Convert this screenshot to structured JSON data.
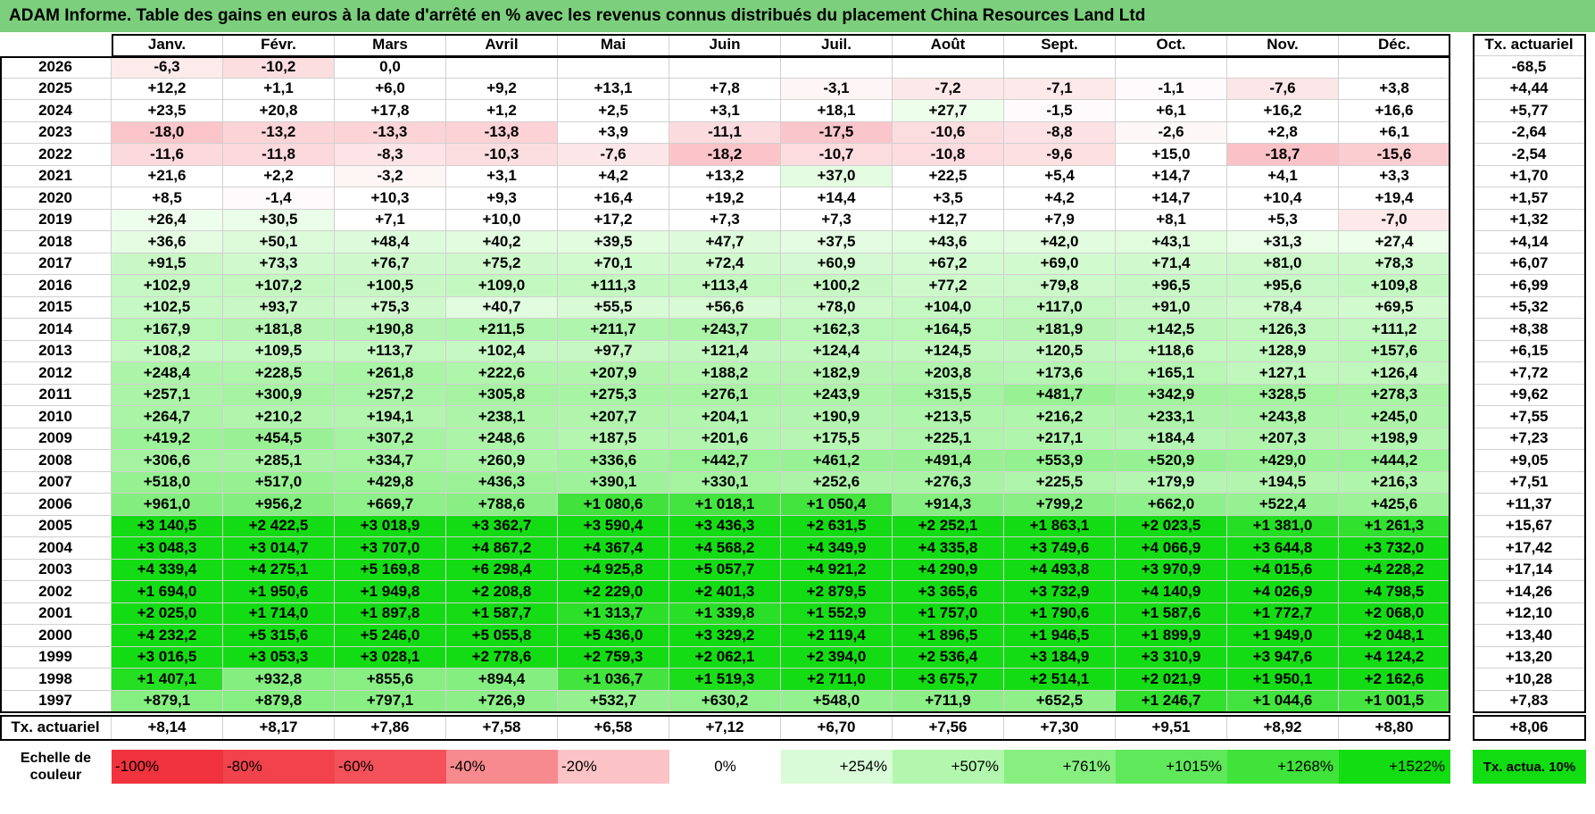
{
  "title": "ADAM Informe. Table des gains en euros à la date d'arrêté en % avec les revenus connus distribués du placement China Resources Land Ltd",
  "months": [
    "Janv.",
    "Févr.",
    "Mars",
    "Avril",
    "Mai",
    "Juin",
    "Juil.",
    "Août",
    "Sept.",
    "Oct.",
    "Nov.",
    "Déc."
  ],
  "rate_header": "Tx. actuariel",
  "rows": [
    {
      "year": "2026",
      "values": [
        "-6,3",
        "-10,2",
        "0,0",
        "",
        "",
        "",
        "",
        "",
        "",
        "",
        "",
        ""
      ],
      "rate": "-68,5"
    },
    {
      "year": "2025",
      "values": [
        "+12,2",
        "+1,1",
        "+6,0",
        "+9,2",
        "+13,1",
        "+7,8",
        "-3,1",
        "-7,2",
        "-7,1",
        "-1,1",
        "-7,6",
        "+3,8"
      ],
      "rate": "+4,44"
    },
    {
      "year": "2024",
      "values": [
        "+23,5",
        "+20,8",
        "+17,8",
        "+1,2",
        "+2,5",
        "+3,1",
        "+18,1",
        "+27,7",
        "-1,5",
        "+6,1",
        "+16,2",
        "+16,6"
      ],
      "rate": "+5,77"
    },
    {
      "year": "2023",
      "values": [
        "-18,0",
        "-13,2",
        "-13,3",
        "-13,8",
        "+3,9",
        "-11,1",
        "-17,5",
        "-10,6",
        "-8,8",
        "-2,6",
        "+2,8",
        "+6,1"
      ],
      "rate": "-2,64"
    },
    {
      "year": "2022",
      "values": [
        "-11,6",
        "-11,8",
        "-8,3",
        "-10,3",
        "-7,6",
        "-18,2",
        "-10,7",
        "-10,8",
        "-9,6",
        "+15,0",
        "-18,7",
        "-15,6"
      ],
      "rate": "-2,54"
    },
    {
      "year": "2021",
      "values": [
        "+21,6",
        "+2,2",
        "-3,2",
        "+3,1",
        "+4,2",
        "+13,2",
        "+37,0",
        "+22,5",
        "+5,4",
        "+14,7",
        "+4,1",
        "+3,3"
      ],
      "rate": "+1,70"
    },
    {
      "year": "2020",
      "values": [
        "+8,5",
        "-1,4",
        "+10,3",
        "+9,3",
        "+16,4",
        "+19,2",
        "+14,4",
        "+3,5",
        "+4,2",
        "+14,7",
        "+10,4",
        "+19,4"
      ],
      "rate": "+1,57"
    },
    {
      "year": "2019",
      "values": [
        "+26,4",
        "+30,5",
        "+7,1",
        "+10,0",
        "+17,2",
        "+7,3",
        "+7,3",
        "+12,7",
        "+7,9",
        "+8,1",
        "+5,3",
        "-7,0"
      ],
      "rate": "+1,32"
    },
    {
      "year": "2018",
      "values": [
        "+36,6",
        "+50,1",
        "+48,4",
        "+40,2",
        "+39,5",
        "+47,7",
        "+37,5",
        "+43,6",
        "+42,0",
        "+43,1",
        "+31,3",
        "+27,4"
      ],
      "rate": "+4,14"
    },
    {
      "year": "2017",
      "values": [
        "+91,5",
        "+73,3",
        "+76,7",
        "+75,2",
        "+70,1",
        "+72,4",
        "+60,9",
        "+67,2",
        "+69,0",
        "+71,4",
        "+81,0",
        "+78,3"
      ],
      "rate": "+6,07"
    },
    {
      "year": "2016",
      "values": [
        "+102,9",
        "+107,2",
        "+100,5",
        "+109,0",
        "+111,3",
        "+113,4",
        "+100,2",
        "+77,2",
        "+79,8",
        "+96,5",
        "+95,6",
        "+109,8"
      ],
      "rate": "+6,99"
    },
    {
      "year": "2015",
      "values": [
        "+102,5",
        "+93,7",
        "+75,3",
        "+40,7",
        "+55,5",
        "+56,6",
        "+78,0",
        "+104,0",
        "+117,0",
        "+91,0",
        "+78,4",
        "+69,5"
      ],
      "rate": "+5,32"
    },
    {
      "year": "2014",
      "values": [
        "+167,9",
        "+181,8",
        "+190,8",
        "+211,5",
        "+211,7",
        "+243,7",
        "+162,3",
        "+164,5",
        "+181,9",
        "+142,5",
        "+126,3",
        "+111,2"
      ],
      "rate": "+8,38"
    },
    {
      "year": "2013",
      "values": [
        "+108,2",
        "+109,5",
        "+113,7",
        "+102,4",
        "+97,7",
        "+121,4",
        "+124,4",
        "+124,5",
        "+120,5",
        "+118,6",
        "+128,9",
        "+157,6"
      ],
      "rate": "+6,15"
    },
    {
      "year": "2012",
      "values": [
        "+248,4",
        "+228,5",
        "+261,8",
        "+222,6",
        "+207,9",
        "+188,2",
        "+182,9",
        "+203,8",
        "+173,6",
        "+165,1",
        "+127,1",
        "+126,4"
      ],
      "rate": "+7,72"
    },
    {
      "year": "2011",
      "values": [
        "+257,1",
        "+300,9",
        "+257,2",
        "+305,8",
        "+275,3",
        "+276,1",
        "+243,9",
        "+315,5",
        "+481,7",
        "+342,9",
        "+328,5",
        "+278,3"
      ],
      "rate": "+9,62"
    },
    {
      "year": "2010",
      "values": [
        "+264,7",
        "+210,2",
        "+194,1",
        "+238,1",
        "+207,7",
        "+204,1",
        "+190,9",
        "+213,5",
        "+216,2",
        "+233,1",
        "+243,8",
        "+245,0"
      ],
      "rate": "+7,55"
    },
    {
      "year": "2009",
      "values": [
        "+419,2",
        "+454,5",
        "+307,2",
        "+248,6",
        "+187,5",
        "+201,6",
        "+175,5",
        "+225,1",
        "+217,1",
        "+184,4",
        "+207,3",
        "+198,9"
      ],
      "rate": "+7,23"
    },
    {
      "year": "2008",
      "values": [
        "+306,6",
        "+285,1",
        "+334,7",
        "+260,9",
        "+336,6",
        "+442,7",
        "+461,2",
        "+491,4",
        "+553,9",
        "+520,9",
        "+429,0",
        "+444,2"
      ],
      "rate": "+9,05"
    },
    {
      "year": "2007",
      "values": [
        "+518,0",
        "+517,0",
        "+429,8",
        "+436,3",
        "+390,1",
        "+330,1",
        "+252,6",
        "+276,3",
        "+225,5",
        "+179,9",
        "+194,5",
        "+216,3"
      ],
      "rate": "+7,51"
    },
    {
      "year": "2006",
      "values": [
        "+961,0",
        "+956,2",
        "+669,7",
        "+788,6",
        "+1 080,6",
        "+1 018,1",
        "+1 050,4",
        "+914,3",
        "+799,2",
        "+662,0",
        "+522,4",
        "+425,6"
      ],
      "rate": "+11,37"
    },
    {
      "year": "2005",
      "values": [
        "+3 140,5",
        "+2 422,5",
        "+3 018,9",
        "+3 362,7",
        "+3 590,4",
        "+3 436,3",
        "+2 631,5",
        "+2 252,1",
        "+1 863,1",
        "+2 023,5",
        "+1 381,0",
        "+1 261,3"
      ],
      "rate": "+15,67"
    },
    {
      "year": "2004",
      "values": [
        "+3 048,3",
        "+3 014,7",
        "+3 707,0",
        "+4 867,2",
        "+4 367,4",
        "+4 568,2",
        "+4 349,9",
        "+4 335,8",
        "+3 749,6",
        "+4 066,9",
        "+3 644,8",
        "+3 732,0"
      ],
      "rate": "+17,42"
    },
    {
      "year": "2003",
      "values": [
        "+4 339,4",
        "+4 275,1",
        "+5 169,8",
        "+6 298,4",
        "+4 925,8",
        "+5 057,7",
        "+4 921,2",
        "+4 290,9",
        "+4 493,8",
        "+3 970,9",
        "+4 015,6",
        "+4 228,2"
      ],
      "rate": "+17,14"
    },
    {
      "year": "2002",
      "values": [
        "+1 694,0",
        "+1 950,6",
        "+1 949,8",
        "+2 208,8",
        "+2 229,0",
        "+2 401,3",
        "+2 879,5",
        "+3 365,6",
        "+3 732,9",
        "+4 140,9",
        "+4 026,9",
        "+4 798,5"
      ],
      "rate": "+14,26"
    },
    {
      "year": "2001",
      "values": [
        "+2 025,0",
        "+1 714,0",
        "+1 897,8",
        "+1 587,7",
        "+1 313,7",
        "+1 339,8",
        "+1 552,9",
        "+1 757,0",
        "+1 790,6",
        "+1 587,6",
        "+1 772,7",
        "+2 068,0"
      ],
      "rate": "+12,10"
    },
    {
      "year": "2000",
      "values": [
        "+4 232,2",
        "+5 315,6",
        "+5 246,0",
        "+5 055,8",
        "+5 436,0",
        "+3 329,2",
        "+2 119,4",
        "+1 896,5",
        "+1 946,5",
        "+1 899,9",
        "+1 949,0",
        "+2 048,1"
      ],
      "rate": "+13,40"
    },
    {
      "year": "1999",
      "values": [
        "+3 016,5",
        "+3 053,3",
        "+3 028,1",
        "+2 778,6",
        "+2 759,3",
        "+2 062,1",
        "+2 394,0",
        "+2 536,4",
        "+3 184,9",
        "+3 310,9",
        "+3 947,6",
        "+4 124,2"
      ],
      "rate": "+13,20"
    },
    {
      "year": "1998",
      "values": [
        "+1 407,1",
        "+932,8",
        "+855,6",
        "+894,4",
        "+1 036,7",
        "+1 519,3",
        "+2 711,0",
        "+3 675,7",
        "+2 514,1",
        "+2 021,9",
        "+1 950,1",
        "+2 162,6"
      ],
      "rate": "+10,28"
    },
    {
      "year": "1997",
      "values": [
        "+879,1",
        "+879,8",
        "+797,1",
        "+726,9",
        "+532,7",
        "+630,2",
        "+548,0",
        "+711,9",
        "+652,5",
        "+1 246,7",
        "+1 044,6",
        "+1 001,5"
      ],
      "rate": "+7,83"
    }
  ],
  "summary": {
    "label": "Tx. actuariel",
    "values": [
      "+8,14",
      "+8,17",
      "+7,86",
      "+7,58",
      "+6,58",
      "+7,12",
      "+6,70",
      "+7,56",
      "+7,30",
      "+9,51",
      "+8,92",
      "+8,80"
    ],
    "rate": "+8,06"
  },
  "scale": {
    "label": "Echelle de couleur",
    "steps": [
      {
        "text": "-100%",
        "color": "#f0333f"
      },
      {
        "text": "-80%",
        "color": "#f2434d"
      },
      {
        "text": "-60%",
        "color": "#f5515a"
      },
      {
        "text": "-40%",
        "color": "#f78a8e"
      },
      {
        "text": "-20%",
        "color": "#fbc3c5"
      },
      {
        "text": "0%",
        "color": "#ffffff"
      },
      {
        "text": "+254%",
        "color": "#d9fbd7"
      },
      {
        "text": "+507%",
        "color": "#b3f7ae"
      },
      {
        "text": "+761%",
        "color": "#86ef80"
      },
      {
        "text": "+1015%",
        "color": "#5fe85a"
      },
      {
        "text": "+1268%",
        "color": "#3fe33a"
      },
      {
        "text": "+1522%",
        "color": "#12dc12"
      }
    ],
    "rate_label": "Tx. actua. 10%",
    "rate_color": "#12dc12"
  }
}
